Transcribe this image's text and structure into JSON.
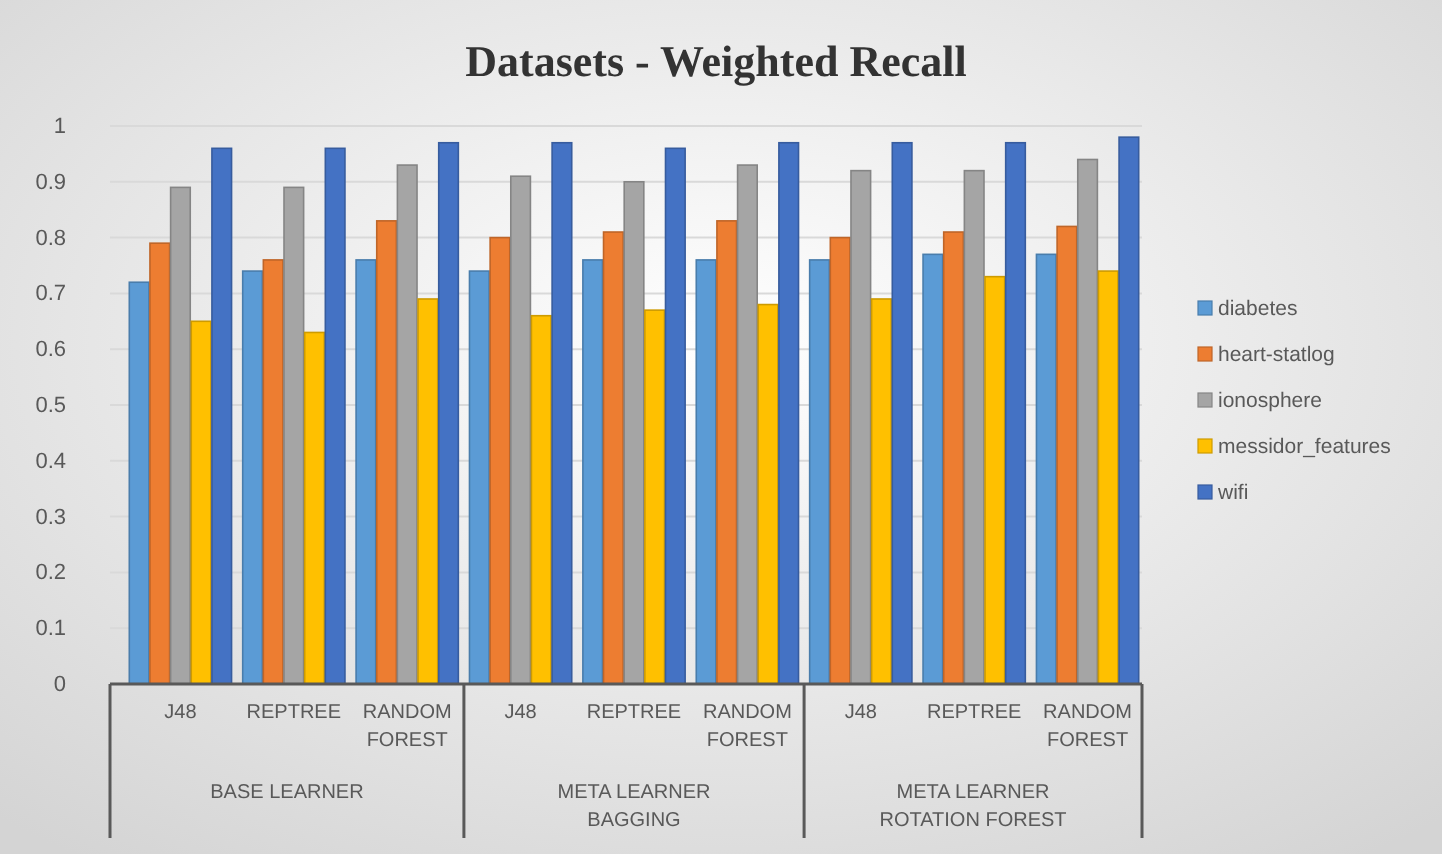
{
  "chart_data": {
    "type": "bar",
    "title": "Datasets - Weighted Recall",
    "categories": [
      "J48",
      "REPTREE",
      "RANDOM FOREST",
      "J48",
      "REPTREE",
      "RANDOM FOREST",
      "J48",
      "REPTREE",
      "RANDOM FOREST"
    ],
    "annotations": [
      "BASE LEARNER",
      "META LEARNER BAGGING",
      "META LEARNER ROTATION FOREST"
    ],
    "series": [
      {
        "name": "diabetes",
        "color": "#5b9bd5",
        "values": [
          0.72,
          0.74,
          0.76,
          0.74,
          0.76,
          0.76,
          0.76,
          0.77,
          0.77
        ]
      },
      {
        "name": "heart-statlog",
        "color": "#ed7d31",
        "values": [
          0.79,
          0.76,
          0.83,
          0.8,
          0.81,
          0.83,
          0.8,
          0.81,
          0.82
        ]
      },
      {
        "name": "ionosphere",
        "color": "#a5a5a5",
        "values": [
          0.89,
          0.89,
          0.93,
          0.91,
          0.9,
          0.93,
          0.92,
          0.92,
          0.94
        ]
      },
      {
        "name": "messidor_features",
        "color": "#ffc000",
        "values": [
          0.65,
          0.63,
          0.69,
          0.66,
          0.67,
          0.68,
          0.69,
          0.73,
          0.74
        ]
      },
      {
        "name": "wifi",
        "color": "#4472c4",
        "values": [
          0.96,
          0.96,
          0.97,
          0.97,
          0.96,
          0.97,
          0.97,
          0.97,
          0.98
        ]
      }
    ],
    "ylim": [
      0,
      1
    ],
    "yticks": [
      0,
      0.1,
      0.2,
      0.3,
      0.4,
      0.5,
      0.6,
      0.7,
      0.8,
      0.9,
      1
    ],
    "grid": "y",
    "legend": "right"
  }
}
